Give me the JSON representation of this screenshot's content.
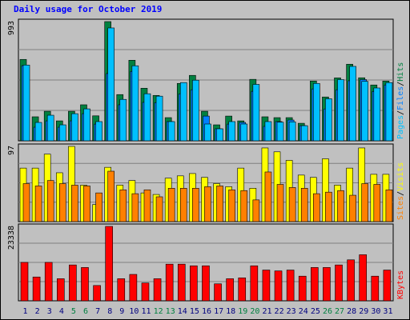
{
  "title": "Daily usage for October 2019",
  "colors": {
    "hits": "#008040",
    "files": "#0080ff",
    "pages": "#00c0ff",
    "visits": "#ffff00",
    "sites": "#ff8000",
    "kbytes": "#ff0000",
    "weekend_label": "#008040",
    "weekday_label": "#000080"
  },
  "chart_data": [
    {
      "type": "bar",
      "panel": "top",
      "ymax_label": "993",
      "ylim": [
        0,
        993
      ],
      "legend_parts": [
        "Pages",
        "/",
        "Files",
        "/",
        "Hits"
      ],
      "categories": [
        "1",
        "2",
        "3",
        "4",
        "5",
        "6",
        "7",
        "8",
        "9",
        "10",
        "11",
        "12",
        "13",
        "14",
        "15",
        "16",
        "17",
        "18",
        "19",
        "20",
        "21",
        "22",
        "23",
        "24",
        "25",
        "26",
        "27",
        "28",
        "29",
        "30",
        "31"
      ],
      "weekend_days": [
        5,
        6,
        12,
        13,
        19,
        20,
        26,
        27
      ],
      "series": [
        {
          "name": "Hits",
          "values": [
            678,
            200,
            246,
            166,
            246,
            300,
            208,
            993,
            385,
            671,
            438,
            378,
            193,
            478,
            545,
            246,
            133,
            206,
            166,
            512,
            200,
            193,
            193,
            146,
            498,
            365,
            524,
            638,
            525,
            465,
            498
          ]
        },
        {
          "name": "Files",
          "values": [
            626,
            113,
            166,
            113,
            166,
            226,
            139,
            560,
            300,
            578,
            320,
            318,
            160,
            391,
            425,
            206,
            100,
            139,
            153,
            412,
            120,
            160,
            173,
            126,
            432,
            265,
            425,
            500,
            510,
            411,
            465
          ]
        },
        {
          "name": "Pages",
          "values": [
            631,
            153,
            213,
            133,
            226,
            266,
            160,
            940,
            345,
            625,
            392,
            372,
            160,
            485,
            505,
            140,
            100,
            160,
            140,
            470,
            160,
            155,
            158,
            126,
            478,
            350,
            510,
            620,
            495,
            440,
            485
          ]
        }
      ]
    },
    {
      "type": "bar",
      "panel": "middle",
      "ymax_label": "97",
      "ylim": [
        0,
        97
      ],
      "legend_parts": [
        "Sites",
        "/",
        "Visits"
      ],
      "categories": [
        "1",
        "2",
        "3",
        "4",
        "5",
        "6",
        "7",
        "8",
        "9",
        "10",
        "11",
        "12",
        "13",
        "14",
        "15",
        "16",
        "17",
        "18",
        "19",
        "20",
        "21",
        "22",
        "23",
        "24",
        "25",
        "26",
        "27",
        "28",
        "29",
        "30",
        "31"
      ],
      "weekend_days": [
        5,
        6,
        12,
        13,
        19,
        20,
        26,
        27
      ],
      "series": [
        {
          "name": "Visits",
          "values": [
            69,
            69,
            87,
            63,
            97,
            47,
            22,
            70,
            47,
            53,
            37,
            35,
            56,
            59,
            62,
            57,
            49,
            45,
            69,
            43,
            95,
            90,
            79,
            60,
            57,
            81,
            47,
            69,
            95,
            61,
            61
          ]
        },
        {
          "name": "Sites",
          "values": [
            49,
            46,
            53,
            49,
            47,
            46,
            37,
            65,
            41,
            36,
            41,
            32,
            43,
            43,
            43,
            45,
            46,
            41,
            40,
            28,
            64,
            48,
            44,
            43,
            36,
            38,
            40,
            34,
            49,
            48,
            41
          ]
        }
      ]
    },
    {
      "type": "bar",
      "panel": "bottom",
      "ymax_label": "23338",
      "ylim": [
        0,
        23338
      ],
      "legend_parts": [
        "KBytes"
      ],
      "categories": [
        "1",
        "2",
        "3",
        "4",
        "5",
        "6",
        "7",
        "8",
        "9",
        "10",
        "11",
        "12",
        "13",
        "14",
        "15",
        "16",
        "17",
        "18",
        "19",
        "20",
        "21",
        "22",
        "23",
        "24",
        "25",
        "26",
        "27",
        "28",
        "29",
        "30",
        "31"
      ],
      "weekend_days": [
        5,
        6,
        12,
        13,
        19,
        20,
        26,
        27
      ],
      "series": [
        {
          "name": "KBytes",
          "values": [
            12050,
            7470,
            12050,
            6930,
            11250,
            10450,
            4800,
            23338,
            6930,
            8280,
            5600,
            6930,
            11500,
            11500,
            10980,
            10980,
            5330,
            6930,
            7200,
            10980,
            9650,
            9380,
            9650,
            7730,
            10450,
            10450,
            11250,
            12850,
            14450,
            7730,
            9650
          ]
        }
      ]
    }
  ]
}
